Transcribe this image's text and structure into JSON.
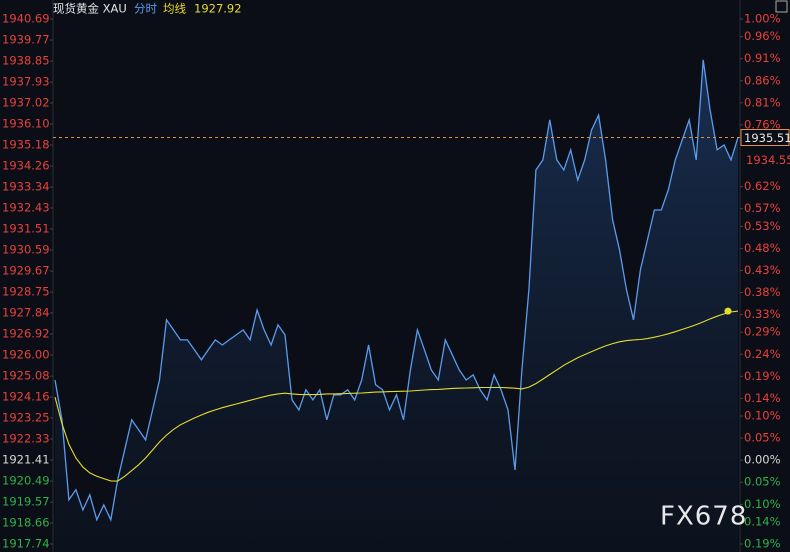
{
  "chart_data": {
    "type": "line",
    "title": "现货黄金 XAU",
    "mode_label": "分时",
    "ma_label": "均线",
    "ma_value": 1927.92,
    "last_price": 1935.51,
    "ref_price": 1934.55,
    "colors": {
      "up": "#e8413c",
      "flat": "#d8d8d8",
      "down": "#2fb24a",
      "price": "#5b9bec",
      "average": "#e6dc2a"
    },
    "series": [
      {
        "name": "分时",
        "color": "#5b9bec",
        "values": [
          1924.91,
          1923.17,
          1919.67,
          1920.11,
          1919.23,
          1919.89,
          1918.8,
          1919.45,
          1918.8,
          1920.54,
          1921.86,
          1923.17,
          1922.73,
          1922.29,
          1923.6,
          1924.91,
          1927.54,
          1927.1,
          1926.66,
          1926.66,
          1926.23,
          1925.79,
          1926.23,
          1926.66,
          1926.44,
          1926.66,
          1926.88,
          1927.1,
          1926.66,
          1927.97,
          1927.1,
          1926.44,
          1927.32,
          1926.88,
          1924.04,
          1923.6,
          1924.48,
          1924.04,
          1924.48,
          1923.17,
          1924.26,
          1924.26,
          1924.48,
          1924.04,
          1924.91,
          1926.44,
          1924.7,
          1924.48,
          1923.6,
          1924.26,
          1923.17,
          1925.35,
          1927.1,
          1926.23,
          1925.35,
          1924.91,
          1926.66,
          1926.01,
          1925.35,
          1924.91,
          1925.13,
          1924.48,
          1924.04,
          1925.13,
          1924.48,
          1923.6,
          1920.98,
          1925.35,
          1928.85,
          1934.09,
          1934.53,
          1936.28,
          1934.53,
          1934.09,
          1934.97,
          1933.65,
          1934.53,
          1935.84,
          1936.49,
          1934.53,
          1931.91,
          1930.6,
          1928.85,
          1927.54,
          1929.72,
          1931.03,
          1932.34,
          1932.34,
          1933.22,
          1934.53,
          1935.4,
          1936.28,
          1934.53,
          1938.9,
          1936.71,
          1934.97,
          1935.18,
          1934.53,
          1935.51
        ]
      },
      {
        "name": "均线",
        "color": "#e6dc2a",
        "values": [
          1924.16,
          1923.0,
          1922.1,
          1921.5,
          1921.1,
          1920.85,
          1920.7,
          1920.6,
          1920.5,
          1920.49,
          1920.7,
          1920.95,
          1921.2,
          1921.5,
          1921.85,
          1922.2,
          1922.5,
          1922.75,
          1922.95,
          1923.1,
          1923.25,
          1923.38,
          1923.5,
          1923.6,
          1923.7,
          1923.78,
          1923.86,
          1923.94,
          1924.02,
          1924.1,
          1924.18,
          1924.25,
          1924.3,
          1924.33,
          1924.3,
          1924.28,
          1924.27,
          1924.27,
          1924.28,
          1924.3,
          1924.3,
          1924.31,
          1924.32,
          1924.33,
          1924.34,
          1924.36,
          1924.38,
          1924.39,
          1924.4,
          1924.41,
          1924.42,
          1924.43,
          1924.45,
          1924.47,
          1924.49,
          1924.5,
          1924.52,
          1924.54,
          1924.55,
          1924.56,
          1924.57,
          1924.58,
          1924.58,
          1924.58,
          1924.58,
          1924.57,
          1924.55,
          1924.52,
          1924.6,
          1924.75,
          1924.95,
          1925.15,
          1925.35,
          1925.55,
          1925.72,
          1925.88,
          1926.02,
          1926.15,
          1926.28,
          1926.4,
          1926.5,
          1926.58,
          1926.63,
          1926.66,
          1926.68,
          1926.72,
          1926.78,
          1926.85,
          1926.93,
          1927.02,
          1927.12,
          1927.22,
          1927.33,
          1927.45,
          1927.58,
          1927.7,
          1927.8,
          1927.88,
          1927.92
        ]
      }
    ],
    "ylim": [
      1917.74,
      1940.69
    ],
    "yticks": [
      1940.69,
      1939.77,
      1938.85,
      1937.93,
      1937.02,
      {
        "value": 1936.1,
        "label": "1936.10"
      },
      1935.18,
      1934.26,
      1933.34,
      1932.43,
      1931.51,
      1930.59,
      1929.67,
      1928.75,
      1927.84,
      1926.92,
      {
        "value": 1926,
        "label": "1926.00"
      },
      1925.08,
      1924.16,
      1923.25,
      1922.33,
      1921.41,
      1920.49,
      1919.57,
      1918.66,
      1917.74
    ],
    "y2lim": [
      -0.19,
      1.0
    ],
    "y2ticks": [
      {
        "value": 1,
        "label": "1.00%"
      },
      {
        "value": 0.96,
        "label": "0.96%"
      },
      {
        "value": 0.91,
        "label": "0.91%"
      },
      {
        "value": 0.86,
        "label": "0.86%"
      },
      {
        "value": 0.81,
        "label": "0.81%"
      },
      {
        "value": 0.76,
        "label": "0.76%"
      },
      {
        "value": 0.62,
        "label": "0.62%"
      },
      {
        "value": 0.57,
        "label": "0.57%"
      },
      {
        "value": 0.53,
        "label": "0.53%"
      },
      {
        "value": 0.48,
        "label": "0.48%"
      },
      {
        "value": 0.43,
        "label": "0.43%"
      },
      {
        "value": 0.38,
        "label": "0.38%"
      },
      {
        "value": 0.33,
        "label": "0.33%"
      },
      {
        "value": 0.29,
        "label": "0.29%"
      },
      {
        "value": 0.24,
        "label": "0.24%"
      },
      {
        "value": 0.19,
        "label": "0.19%"
      },
      {
        "value": 0.14,
        "label": "0.14%"
      },
      {
        "value": 0.1,
        "label": "0.10%"
      },
      {
        "value": 0.05,
        "label": "0.05%"
      },
      {
        "value": 0,
        "label": "0.00%"
      },
      {
        "value": -0.05,
        "label": "0.05%"
      },
      {
        "value": -0.1,
        "label": "0.10%"
      },
      {
        "value": -0.14,
        "label": "0.14%"
      },
      {
        "value": -0.19,
        "label": "0.19%"
      }
    ],
    "watermark": "FX678"
  }
}
